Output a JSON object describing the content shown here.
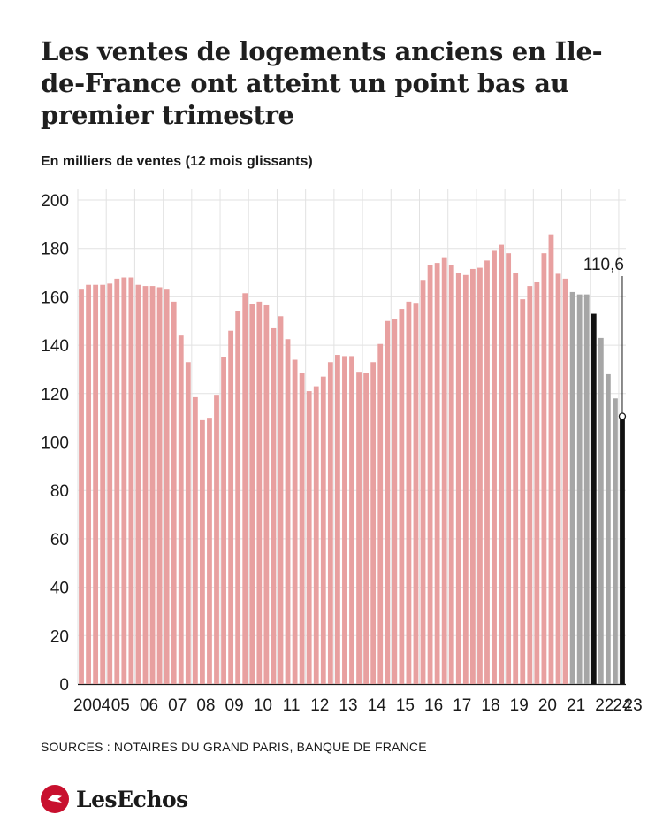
{
  "title": "Les ventes de logements anciens en Ile-de-France ont atteint un point bas au premier trimestre",
  "subtitle": "En milliers de ventes (12 mois glissants)",
  "sources": "SOURCES :  NOTAIRES DU GRAND PARIS, BANQUE DE FRANCE",
  "brand": "LesEchos",
  "colors": {
    "historic": "#e8a0a0",
    "recent": "#a6a6a6",
    "highlight": "#111111"
  },
  "chart_data": {
    "type": "bar",
    "ylim": [
      0,
      200
    ],
    "yticks": [
      0,
      20,
      40,
      60,
      80,
      100,
      120,
      140,
      160,
      180,
      200
    ],
    "grid": true,
    "xlabels": [
      "2004",
      "05",
      "06",
      "07",
      "08",
      "09",
      "10",
      "11",
      "12",
      "13",
      "14",
      "15",
      "16",
      "17",
      "18",
      "19",
      "20",
      "21",
      "22",
      "23",
      "24"
    ],
    "series": [
      {
        "values": [
          163,
          165,
          165,
          165,
          165.5,
          167.5,
          168,
          168,
          165,
          164.5,
          164.5,
          164,
          163,
          158,
          144,
          133,
          118.5,
          109,
          110,
          119.5,
          135,
          146,
          154,
          161.5,
          157,
          158,
          156.5,
          147,
          152,
          142.5,
          134,
          128.5,
          121,
          123,
          127,
          133,
          136,
          135.5,
          135.5,
          129,
          128.5,
          133,
          140.5,
          150,
          151,
          155,
          158,
          157.5,
          167,
          173,
          174,
          176,
          173,
          170,
          169,
          171.5,
          172,
          175,
          179,
          181.5,
          178,
          170,
          159,
          164.5,
          166,
          178,
          185.5,
          169.5,
          167.5,
          162,
          161,
          161,
          153,
          143,
          128,
          118,
          110.6
        ],
        "colors": [
          "historic",
          "historic",
          "historic",
          "historic",
          "historic",
          "historic",
          "historic",
          "historic",
          "historic",
          "historic",
          "historic",
          "historic",
          "historic",
          "historic",
          "historic",
          "historic",
          "historic",
          "historic",
          "historic",
          "historic",
          "historic",
          "historic",
          "historic",
          "historic",
          "historic",
          "historic",
          "historic",
          "historic",
          "historic",
          "historic",
          "historic",
          "historic",
          "historic",
          "historic",
          "historic",
          "historic",
          "historic",
          "historic",
          "historic",
          "historic",
          "historic",
          "historic",
          "historic",
          "historic",
          "historic",
          "historic",
          "historic",
          "historic",
          "historic",
          "historic",
          "historic",
          "historic",
          "historic",
          "historic",
          "historic",
          "historic",
          "historic",
          "historic",
          "historic",
          "historic",
          "historic",
          "historic",
          "historic",
          "historic",
          "historic",
          "historic",
          "historic",
          "historic",
          "historic",
          "recent",
          "recent",
          "recent",
          "highlight",
          "recent",
          "recent",
          "recent",
          "highlight"
        ]
      }
    ],
    "annotation": {
      "label": "110,6",
      "value": 110.6
    }
  }
}
